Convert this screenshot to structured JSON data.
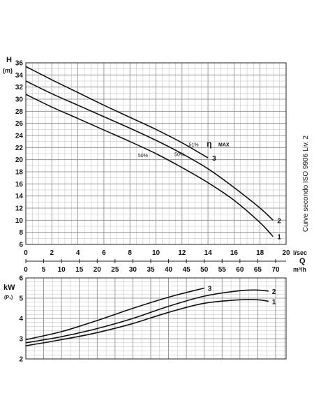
{
  "chart_data": [
    {
      "type": "line",
      "ylabel": "H",
      "ylabel_unit": "(m)",
      "x_axis_primary_label": "l/sec",
      "x_axis_secondary_symbol": "Q",
      "x_axis_secondary_unit": "m³/h",
      "side_note": "Curve secondo ISO 9906 Liv. 2",
      "xlim": [
        0,
        20
      ],
      "ylim": [
        6,
        36
      ],
      "x_ticks": [
        0,
        2,
        4,
        6,
        8,
        10,
        12,
        14,
        16,
        18,
        20
      ],
      "x_ticks_m3h": [
        0,
        5,
        10,
        15,
        20,
        25,
        30,
        35,
        40,
        45,
        50,
        55,
        60,
        65,
        70
      ],
      "y_ticks": [
        6,
        8,
        10,
        12,
        14,
        16,
        18,
        20,
        22,
        24,
        26,
        28,
        30,
        32,
        34,
        36
      ],
      "grid": true,
      "series": [
        {
          "name": "1",
          "x": [
            0,
            2,
            4,
            6,
            8,
            10,
            12,
            14,
            16,
            18,
            19
          ],
          "y": [
            30.8,
            28.7,
            26.8,
            24.9,
            23.0,
            21.0,
            18.7,
            16.2,
            13.3,
            9.6,
            7.3
          ]
        },
        {
          "name": "2",
          "x": [
            0,
            2,
            4,
            6,
            8,
            10,
            12,
            14,
            16,
            18,
            19
          ],
          "y": [
            33.0,
            30.9,
            29.0,
            27.1,
            25.2,
            23.2,
            21.0,
            18.5,
            15.4,
            12.0,
            10.0
          ]
        },
        {
          "name": "3",
          "x": [
            0,
            2,
            4,
            6,
            8,
            10,
            12,
            14
          ],
          "y": [
            35.4,
            33.2,
            31.1,
            29.0,
            27.0,
            25.0,
            22.8,
            20.3
          ]
        }
      ],
      "efficiency": {
        "symbol": "η",
        "label": "MAX",
        "markers": [
          {
            "text": "51%",
            "x": 12.9,
            "y": 22.2
          },
          {
            "text": "50%",
            "x": 11.8,
            "y": 20.6
          },
          {
            "text": "50%",
            "x": 9.0,
            "y": 20.4
          }
        ]
      }
    },
    {
      "type": "line",
      "ylabel": "kW",
      "ylabel_unit": "(P₁)",
      "xlim": [
        0,
        70
      ],
      "ylim": [
        2,
        6
      ],
      "x_ticks": [
        0,
        5,
        10,
        15,
        20,
        25,
        30,
        35,
        40,
        45,
        50,
        55,
        60,
        65,
        70
      ],
      "y_ticks": [
        2,
        3,
        4,
        5,
        6
      ],
      "grid": true,
      "series": [
        {
          "name": "1",
          "x": [
            0,
            10,
            20,
            30,
            40,
            50,
            60,
            65,
            68
          ],
          "y": [
            2.65,
            2.95,
            3.3,
            3.75,
            4.3,
            4.75,
            4.92,
            4.92,
            4.85
          ]
        },
        {
          "name": "2",
          "x": [
            0,
            10,
            20,
            30,
            40,
            50,
            60,
            65,
            68
          ],
          "y": [
            2.8,
            3.1,
            3.5,
            4.0,
            4.6,
            5.1,
            5.37,
            5.4,
            5.35
          ]
        },
        {
          "name": "3",
          "x": [
            0,
            10,
            20,
            30,
            40,
            50
          ],
          "y": [
            2.95,
            3.35,
            3.9,
            4.5,
            5.05,
            5.5
          ]
        }
      ]
    }
  ]
}
